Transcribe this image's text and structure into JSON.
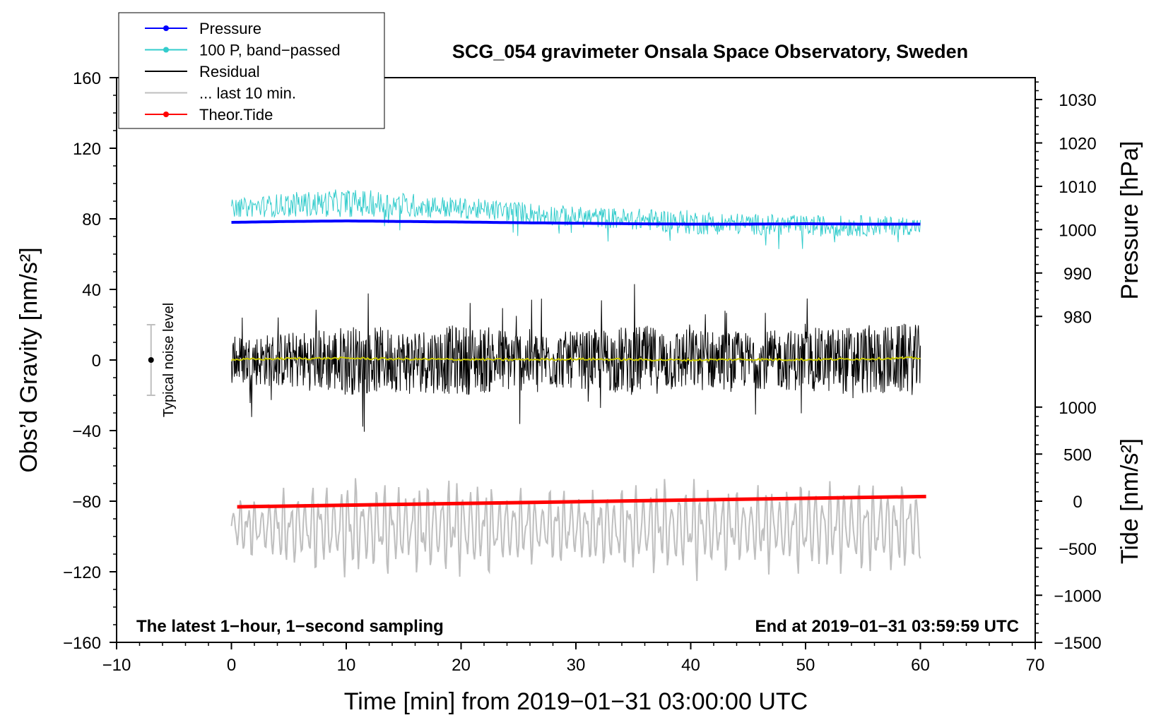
{
  "chart_data": {
    "type": "line",
    "title": "SCG_054 gravimeter Onsala Space Observatory, Sweden",
    "xlabel": "Time [min] from 2019−01−31 03:00:00 UTC",
    "ylabel_left": "Obs’d Gravity [nm/s²]",
    "ylabel_right_pressure": "Pressure [hPa]",
    "ylabel_right_tide": "Tide [nm/s²]",
    "xlim": [
      -10,
      70
    ],
    "ylim": [
      -160,
      160
    ],
    "xticks": [
      "−10",
      "0",
      "10",
      "20",
      "30",
      "40",
      "50",
      "60",
      "70"
    ],
    "xtick_values": [
      -10,
      0,
      10,
      20,
      30,
      40,
      50,
      60,
      70
    ],
    "yticks": [
      "160",
      "120",
      "80",
      "40",
      "0",
      "−40",
      "−80",
      "−120",
      "−160"
    ],
    "ytick_values": [
      160,
      120,
      80,
      40,
      0,
      -40,
      -80,
      -120,
      -160
    ],
    "pressure_axis": {
      "ticks": [
        "1030",
        "1020",
        "1010",
        "1000",
        "990",
        "980"
      ],
      "values": [
        1030,
        1020,
        1010,
        1000,
        990,
        980
      ],
      "gravity_equiv": [
        147.6,
        123.0,
        98.4,
        73.9,
        49.3,
        24.7
      ]
    },
    "tide_axis": {
      "ticks": [
        "1000",
        "500",
        "0",
        "−500",
        "−1000",
        "−1500"
      ],
      "values": [
        1000,
        500,
        0,
        -500,
        -1000,
        -1500
      ],
      "gravity_equiv": [
        -26.7,
        -53.3,
        -80.0,
        -106.7,
        -133.3,
        -160.0
      ]
    },
    "legend": {
      "placement": "top-left",
      "entries": [
        {
          "label": "Pressure",
          "color": "#0000ff",
          "marker": true
        },
        {
          "label": "100 P, band−passed",
          "color": "#33cccc",
          "marker": true
        },
        {
          "label": "Residual",
          "color": "#000000",
          "marker": false
        },
        {
          "label": "... last 10 min.",
          "color": "#bfbfbf",
          "marker": false
        },
        {
          "label": "Theor.Tide",
          "color": "#ff0000",
          "marker": true
        }
      ]
    },
    "annotations": {
      "left_note": "The latest 1−hour, 1−second sampling",
      "right_note": "End at 2019−01−31 03:59:59 UTC",
      "noise_label": "Typical noise level",
      "noise_bar": {
        "x": -7,
        "center": 0,
        "low": -20,
        "high": 20
      }
    },
    "series": [
      {
        "name": "Pressure",
        "color": "#0000ff",
        "x_range": [
          0,
          60
        ],
        "gravity_values": [
          78.0,
          78.5,
          78.8,
          78.5,
          78.2,
          77.8,
          77.5,
          77.2,
          77.0,
          77.0,
          77.2,
          77.0,
          77.0
        ]
      },
      {
        "name": "100 P, band−passed",
        "color": "#33cccc",
        "x_range": [
          0,
          60
        ],
        "center": [
          86,
          88,
          89,
          88,
          86,
          84,
          81,
          80,
          78,
          77,
          76,
          76,
          76
        ],
        "amplitude": [
          5,
          7,
          8,
          7,
          6,
          6,
          6,
          6,
          7,
          6,
          6,
          6,
          5
        ]
      },
      {
        "name": "Residual",
        "color": "#000000",
        "x_range": [
          0,
          60
        ],
        "envelope": [
          14,
          16,
          20,
          18,
          20,
          18,
          16,
          20,
          18,
          16,
          18,
          20,
          20
        ]
      },
      {
        "name": "Residual smoothed",
        "color": "#c8c800",
        "x_range": [
          0,
          60
        ],
        "gravity_values": [
          0.2,
          0.8,
          1.0,
          0.5,
          0.3,
          0.2,
          0.5,
          0.2,
          0.0,
          0.3,
          0.2,
          0.6,
          1.2
        ]
      },
      {
        "name": "... last 10 min.",
        "color": "#bfbfbf",
        "x_range": [
          0,
          60
        ],
        "center": -95,
        "amplitude": [
          15,
          25,
          30,
          28,
          30,
          25,
          22,
          28,
          30,
          25,
          28,
          30,
          25
        ]
      },
      {
        "name": "Theor.Tide",
        "color": "#ff0000",
        "x_range": [
          0.5,
          60.5
        ],
        "tide_values": [
          -60,
          50
        ]
      }
    ]
  }
}
